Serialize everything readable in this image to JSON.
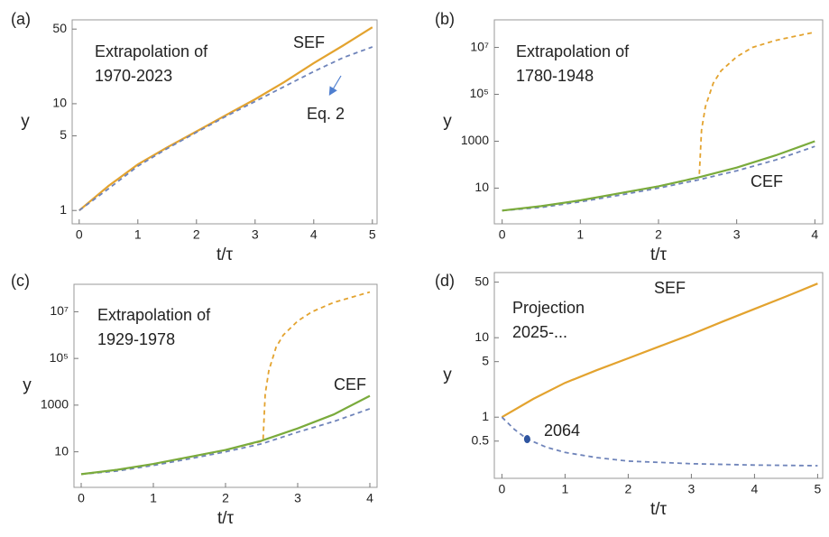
{
  "chart_data": [
    {
      "type": "line",
      "panel": "(a)",
      "annotations": [
        "Extrapolation of",
        "1970-2023",
        "SEF",
        "Eq. 2"
      ],
      "xlabel": "t/τ",
      "ylabel": "y",
      "log_y": true,
      "xlim": [
        -0.12,
        5.08
      ],
      "xticks": [
        0,
        1,
        2,
        3,
        4,
        5
      ],
      "ylim": [
        0.75,
        61
      ],
      "yticks": [
        1,
        5,
        10,
        50
      ],
      "series": [
        {
          "color": "#e3a32f",
          "dash": false,
          "x": [
            0,
            0.5,
            1,
            1.5,
            2,
            2.5,
            3,
            3.5,
            4,
            4.5,
            5
          ],
          "values": [
            1,
            1.7,
            2.7,
            3.9,
            5.5,
            7.8,
            11,
            16,
            24,
            35,
            52
          ]
        },
        {
          "color": "#6f84ba",
          "dash": true,
          "x": [
            0,
            0.5,
            1,
            1.5,
            2,
            2.5,
            3,
            3.5,
            4,
            4.5,
            5
          ],
          "values": [
            1,
            1.6,
            2.6,
            3.8,
            5.4,
            7.6,
            10.5,
            14.5,
            20,
            27,
            34
          ]
        }
      ]
    },
    {
      "type": "line",
      "panel": "(b)",
      "annotations": [
        "Extrapolation of",
        "1780-1948",
        "CEF"
      ],
      "xlabel": "t/τ",
      "ylabel": "y",
      "log_y": true,
      "xlim": [
        -0.1,
        4.1
      ],
      "xticks": [
        0,
        1,
        2,
        3,
        4
      ],
      "ylim": [
        0.3,
        150000000
      ],
      "yticks": [
        10,
        1000,
        {
          "value": 100000,
          "label": "10⁵"
        },
        {
          "value": 10000000,
          "label": "10⁷"
        }
      ],
      "series": [
        {
          "color": "#e3a32f",
          "dash": true,
          "x": [
            0,
            0.5,
            1,
            1.5,
            2,
            2.5,
            2.52,
            2.55,
            2.6,
            2.7,
            2.8,
            3,
            3.2,
            3.5,
            4
          ],
          "values": [
            1.1,
            1.7,
            3,
            6,
            12,
            28,
            30,
            3000,
            30000,
            300000,
            1000000,
            4000000,
            10000000,
            20000000,
            45000000
          ]
        },
        {
          "color": "#6f84ba",
          "dash": true,
          "x": [
            0,
            0.5,
            1,
            1.5,
            2,
            2.5,
            3,
            3.5,
            4
          ],
          "values": [
            1.1,
            1.5,
            2.6,
            5,
            10,
            22,
            55,
            160,
            600
          ]
        },
        {
          "color": "#7aab3c",
          "dash": false,
          "x": [
            0,
            0.5,
            1,
            1.5,
            2,
            2.5,
            3,
            3.5,
            4
          ],
          "values": [
            1.1,
            1.7,
            3,
            6,
            12,
            28,
            75,
            250,
            1000
          ]
        }
      ]
    },
    {
      "type": "line",
      "panel": "(c)",
      "annotations": [
        "Extrapolation of",
        "1929-1978",
        "CEF"
      ],
      "xlabel": "t/τ",
      "ylabel": "y",
      "log_y": true,
      "xlim": [
        -0.1,
        4.1
      ],
      "xticks": [
        0,
        1,
        2,
        3,
        4
      ],
      "ylim": [
        0.3,
        150000000
      ],
      "yticks": [
        10,
        1000,
        {
          "value": 100000,
          "label": "10⁵"
        },
        {
          "value": 10000000,
          "label": "10⁷"
        }
      ],
      "series": [
        {
          "color": "#e3a32f",
          "dash": true,
          "x": [
            0,
            0.5,
            1,
            1.5,
            2,
            2.5,
            2.52,
            2.55,
            2.6,
            2.7,
            2.8,
            3,
            3.2,
            3.5,
            4
          ],
          "values": [
            1.1,
            1.7,
            3,
            6,
            12,
            28,
            30,
            3000,
            30000,
            300000,
            1000000,
            4000000,
            10000000,
            25000000,
            70000000
          ]
        },
        {
          "color": "#6f84ba",
          "dash": true,
          "x": [
            0,
            0.5,
            1,
            1.5,
            2,
            2.5,
            3,
            3.5,
            4
          ],
          "values": [
            1.1,
            1.5,
            2.6,
            5,
            10,
            22,
            70,
            200,
            700
          ]
        },
        {
          "color": "#7aab3c",
          "dash": false,
          "x": [
            0,
            0.5,
            1,
            1.5,
            2,
            2.5,
            3,
            3.5,
            4
          ],
          "values": [
            1.1,
            1.7,
            3,
            6,
            12,
            30,
            100,
            400,
            2500
          ]
        }
      ]
    },
    {
      "type": "line",
      "panel": "(d)",
      "annotations": [
        "Projection",
        "2025-...",
        "SEF"
      ],
      "xlabel": "t/τ",
      "ylabel": "y",
      "log_y": true,
      "xlim": [
        -0.12,
        5.08
      ],
      "xticks": [
        0,
        1,
        2,
        3,
        4,
        5
      ],
      "ylim": [
        0.17,
        66
      ],
      "yticks": [
        0.5,
        1,
        5,
        10,
        50
      ],
      "series": [
        {
          "color": "#e3a32f",
          "dash": false,
          "x": [
            0,
            0.5,
            1,
            1.5,
            2,
            2.5,
            3,
            3.5,
            4,
            4.5,
            5
          ],
          "values": [
            1,
            1.7,
            2.7,
            3.9,
            5.5,
            7.8,
            11,
            16,
            23,
            33,
            48
          ]
        },
        {
          "color": "#6f84ba",
          "dash": true,
          "x": [
            0,
            0.2,
            0.4,
            0.7,
            1,
            1.5,
            2,
            3,
            4,
            5
          ],
          "values": [
            1,
            0.7,
            0.53,
            0.42,
            0.36,
            0.31,
            0.28,
            0.26,
            0.25,
            0.245
          ]
        }
      ],
      "highlight": {
        "label": "2064",
        "x": 0.4,
        "value": 0.53,
        "color": "#2f55a0"
      }
    }
  ]
}
